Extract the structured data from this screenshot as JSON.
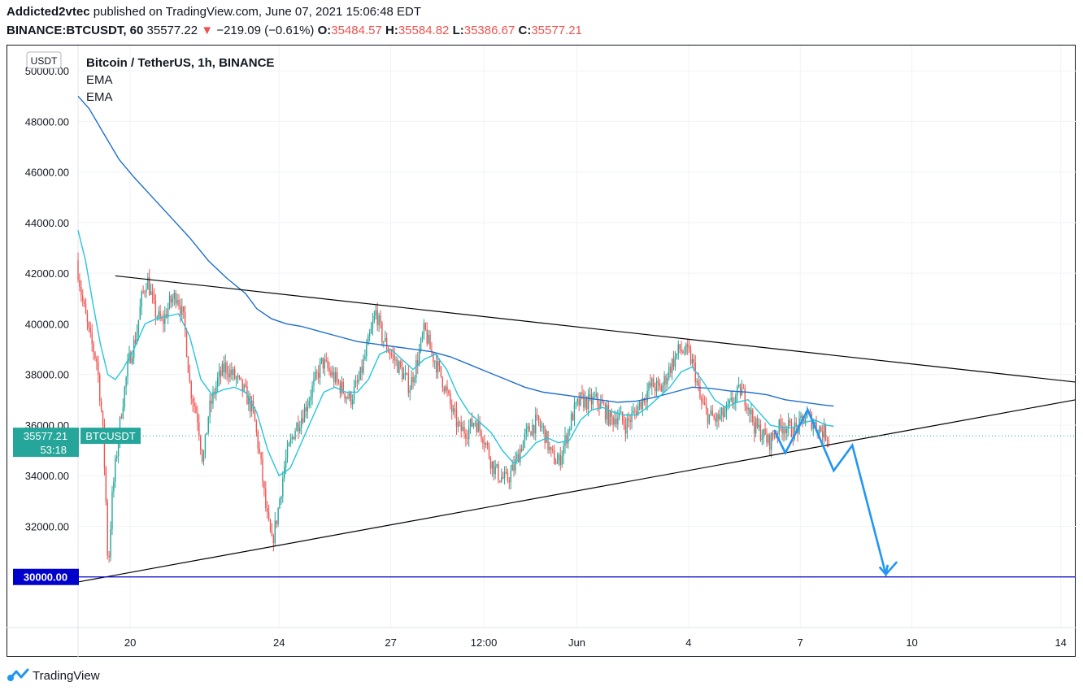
{
  "header": {
    "author": "Addicted2vtec",
    "published": "published on TradingView.com, June 07, 2021 15:06:48 EDT",
    "symbol": "BINANCE:BTCUSDT, 60",
    "last": "35577.22",
    "change": "−219.09 (−0.61%)",
    "o_label": "O:",
    "o": "35484.57",
    "h_label": "H:",
    "h": "35584.82",
    "l_label": "L:",
    "l": "35386.67",
    "c_label": "C:",
    "c": "35577.21"
  },
  "legend": {
    "title": "Bitcoin / TetherUS, 1h, BINANCE",
    "ind1": "EMA",
    "ind2": "EMA"
  },
  "currency": "USDT",
  "price_tag": {
    "value": "35577.21",
    "symbol": "BTCUSDT",
    "countdown": "53:18"
  },
  "level_tag": "30000.00",
  "brand": "TradingView",
  "colors": {
    "up": "#26a69a",
    "down": "#ef5350",
    "ema_fast": "#26c6da",
    "ema_slow": "#1e6fce",
    "trendline": "#000000",
    "level": "#0000cc",
    "projection": "#2196f3",
    "tag": "#26a69a"
  },
  "chart_data": {
    "type": "candlestick",
    "timeframe": "1h",
    "ylim": [
      28000,
      51000
    ],
    "y_ticks": [
      "50000.00",
      "48000.00",
      "46000.00",
      "44000.00",
      "42000.00",
      "40000.00",
      "38000.00",
      "36000.00",
      "34000.00",
      "32000.00",
      "30000.00"
    ],
    "x_ticks": [
      {
        "label": "20",
        "day": 1.4
      },
      {
        "label": "24",
        "day": 5.4
      },
      {
        "label": "27",
        "day": 8.4
      },
      {
        "label": "12:00",
        "day": 10.9
      },
      {
        "label": "Jun",
        "day": 13.4
      },
      {
        "label": "4",
        "day": 16.4
      },
      {
        "label": "7",
        "day": 19.4
      },
      {
        "label": "10",
        "day": 22.4
      },
      {
        "label": "14",
        "day": 26.4
      }
    ],
    "x_range_days": [
      0,
      26.8
    ],
    "price_path": [
      [
        0.0,
        42500
      ],
      [
        0.15,
        41000
      ],
      [
        0.35,
        39500
      ],
      [
        0.55,
        38500
      ],
      [
        0.7,
        36000
      ],
      [
        0.78,
        33500
      ],
      [
        0.85,
        30200
      ],
      [
        0.95,
        33000
      ],
      [
        1.05,
        34500
      ],
      [
        1.2,
        36500
      ],
      [
        1.4,
        38500
      ],
      [
        1.6,
        39500
      ],
      [
        1.75,
        41000
      ],
      [
        1.9,
        41800
      ],
      [
        2.1,
        40500
      ],
      [
        2.3,
        40000
      ],
      [
        2.5,
        40800
      ],
      [
        2.7,
        41200
      ],
      [
        2.9,
        40000
      ],
      [
        3.05,
        37500
      ],
      [
        3.25,
        36300
      ],
      [
        3.4,
        34500
      ],
      [
        3.55,
        36500
      ],
      [
        3.8,
        37800
      ],
      [
        4.0,
        38300
      ],
      [
        4.3,
        37800
      ],
      [
        4.55,
        37200
      ],
      [
        4.75,
        36500
      ],
      [
        4.95,
        34500
      ],
      [
        5.1,
        32500
      ],
      [
        5.25,
        31300
      ],
      [
        5.4,
        32500
      ],
      [
        5.6,
        34500
      ],
      [
        5.85,
        35800
      ],
      [
        6.1,
        36500
      ],
      [
        6.35,
        37500
      ],
      [
        6.6,
        38500
      ],
      [
        6.85,
        38000
      ],
      [
        7.1,
        37500
      ],
      [
        7.35,
        37000
      ],
      [
        7.6,
        37800
      ],
      [
        7.85,
        39300
      ],
      [
        8.05,
        40500
      ],
      [
        8.2,
        39500
      ],
      [
        8.45,
        38800
      ],
      [
        8.7,
        38200
      ],
      [
        8.95,
        37500
      ],
      [
        9.15,
        38500
      ],
      [
        9.35,
        39800
      ],
      [
        9.5,
        39000
      ],
      [
        9.7,
        38300
      ],
      [
        9.9,
        37500
      ],
      [
        10.1,
        36500
      ],
      [
        10.3,
        35800
      ],
      [
        10.5,
        35800
      ],
      [
        10.7,
        36200
      ],
      [
        10.95,
        35500
      ],
      [
        11.15,
        34500
      ],
      [
        11.35,
        34000
      ],
      [
        11.55,
        33800
      ],
      [
        11.75,
        34300
      ],
      [
        11.95,
        35200
      ],
      [
        12.15,
        35800
      ],
      [
        12.35,
        36100
      ],
      [
        12.55,
        35800
      ],
      [
        12.75,
        34800
      ],
      [
        12.95,
        34500
      ],
      [
        13.15,
        35500
      ],
      [
        13.35,
        36500
      ],
      [
        13.55,
        37000
      ],
      [
        13.75,
        36900
      ],
      [
        13.95,
        37000
      ],
      [
        14.15,
        36700
      ],
      [
        14.35,
        36200
      ],
      [
        14.55,
        36400
      ],
      [
        14.75,
        36000
      ],
      [
        14.95,
        36400
      ],
      [
        15.2,
        37000
      ],
      [
        15.45,
        37600
      ],
      [
        15.7,
        37400
      ],
      [
        15.95,
        38300
      ],
      [
        16.2,
        39000
      ],
      [
        16.45,
        38800
      ],
      [
        16.6,
        38200
      ],
      [
        16.75,
        37000
      ],
      [
        16.95,
        36400
      ],
      [
        17.2,
        36200
      ],
      [
        17.45,
        36500
      ],
      [
        17.65,
        37000
      ],
      [
        17.85,
        37400
      ],
      [
        18.05,
        36800
      ],
      [
        18.2,
        36000
      ],
      [
        18.4,
        35700
      ],
      [
        18.6,
        35300
      ],
      [
        18.8,
        35800
      ],
      [
        19.0,
        36000
      ],
      [
        19.2,
        35800
      ],
      [
        19.4,
        35900
      ],
      [
        19.6,
        36400
      ],
      [
        19.8,
        36100
      ],
      [
        20.0,
        35800
      ],
      [
        20.2,
        35577
      ]
    ],
    "ema_fast": [
      [
        0.0,
        43700
      ],
      [
        0.2,
        42500
      ],
      [
        0.4,
        40800
      ],
      [
        0.6,
        39200
      ],
      [
        0.8,
        38000
      ],
      [
        1.0,
        37800
      ],
      [
        1.2,
        38200
      ],
      [
        1.5,
        39000
      ],
      [
        1.8,
        40000
      ],
      [
        2.1,
        40200
      ],
      [
        2.4,
        40300
      ],
      [
        2.7,
        40400
      ],
      [
        3.0,
        39500
      ],
      [
        3.3,
        37800
      ],
      [
        3.6,
        37200
      ],
      [
        3.9,
        37400
      ],
      [
        4.2,
        37500
      ],
      [
        4.5,
        37300
      ],
      [
        4.8,
        36500
      ],
      [
        5.1,
        35000
      ],
      [
        5.4,
        34000
      ],
      [
        5.7,
        34300
      ],
      [
        6.0,
        35300
      ],
      [
        6.3,
        36300
      ],
      [
        6.6,
        37300
      ],
      [
        6.9,
        37500
      ],
      [
        7.2,
        37300
      ],
      [
        7.5,
        37300
      ],
      [
        7.8,
        37800
      ],
      [
        8.1,
        38800
      ],
      [
        8.4,
        39000
      ],
      [
        8.7,
        38600
      ],
      [
        9.0,
        38200
      ],
      [
        9.3,
        38600
      ],
      [
        9.6,
        38800
      ],
      [
        9.9,
        38200
      ],
      [
        10.2,
        37200
      ],
      [
        10.5,
        36500
      ],
      [
        10.8,
        36100
      ],
      [
        11.1,
        35700
      ],
      [
        11.4,
        35000
      ],
      [
        11.7,
        34500
      ],
      [
        12.0,
        34800
      ],
      [
        12.3,
        35300
      ],
      [
        12.6,
        35500
      ],
      [
        12.9,
        35300
      ],
      [
        13.2,
        35400
      ],
      [
        13.5,
        36200
      ],
      [
        13.8,
        36600
      ],
      [
        14.1,
        36700
      ],
      [
        14.4,
        36500
      ],
      [
        14.7,
        36400
      ],
      [
        15.0,
        36400
      ],
      [
        15.3,
        36700
      ],
      [
        15.6,
        37100
      ],
      [
        15.9,
        37500
      ],
      [
        16.2,
        38100
      ],
      [
        16.5,
        38300
      ],
      [
        16.8,
        37700
      ],
      [
        17.1,
        37000
      ],
      [
        17.4,
        36700
      ],
      [
        17.7,
        36900
      ],
      [
        18.0,
        37000
      ],
      [
        18.3,
        36500
      ],
      [
        18.6,
        36000
      ],
      [
        18.9,
        35900
      ],
      [
        19.2,
        35900
      ],
      [
        19.5,
        36100
      ],
      [
        19.8,
        36200
      ],
      [
        20.1,
        36000
      ],
      [
        20.3,
        35950
      ]
    ],
    "ema_slow": [
      [
        0.0,
        49000
      ],
      [
        0.3,
        48500
      ],
      [
        0.7,
        47500
      ],
      [
        1.1,
        46500
      ],
      [
        1.5,
        45800
      ],
      [
        2.0,
        45000
      ],
      [
        2.5,
        44200
      ],
      [
        3.0,
        43400
      ],
      [
        3.5,
        42500
      ],
      [
        4.0,
        41800
      ],
      [
        4.5,
        41200
      ],
      [
        4.8,
        40600
      ],
      [
        5.2,
        40200
      ],
      [
        5.6,
        40000
      ],
      [
        6.0,
        39900
      ],
      [
        6.5,
        39700
      ],
      [
        7.0,
        39500
      ],
      [
        7.5,
        39300
      ],
      [
        8.0,
        39200
      ],
      [
        8.5,
        39100
      ],
      [
        9.0,
        39000
      ],
      [
        9.5,
        38900
      ],
      [
        10.0,
        38700
      ],
      [
        10.5,
        38400
      ],
      [
        11.0,
        38100
      ],
      [
        11.5,
        37800
      ],
      [
        12.0,
        37500
      ],
      [
        12.5,
        37300
      ],
      [
        13.0,
        37200
      ],
      [
        13.5,
        37100
      ],
      [
        14.0,
        37000
      ],
      [
        14.5,
        36900
      ],
      [
        15.0,
        36950
      ],
      [
        15.5,
        37100
      ],
      [
        16.0,
        37300
      ],
      [
        16.5,
        37500
      ],
      [
        17.0,
        37450
      ],
      [
        17.5,
        37350
      ],
      [
        18.0,
        37300
      ],
      [
        18.5,
        37200
      ],
      [
        19.0,
        37000
      ],
      [
        19.5,
        36900
      ],
      [
        20.0,
        36800
      ],
      [
        20.3,
        36750
      ]
    ],
    "trendline_upper": [
      [
        1.0,
        41900
      ],
      [
        26.8,
        37700
      ]
    ],
    "trendline_lower": [
      [
        0.0,
        29800
      ],
      [
        26.8,
        37000
      ]
    ],
    "horizontal_level": 30000,
    "last_price": 35577.21,
    "projection": [
      [
        18.7,
        35800
      ],
      [
        19.0,
        34900
      ],
      [
        19.6,
        36600
      ],
      [
        20.3,
        34200
      ],
      [
        20.8,
        35200
      ],
      [
        21.7,
        30100
      ],
      [
        22.0,
        30600
      ]
    ],
    "grid": true
  }
}
